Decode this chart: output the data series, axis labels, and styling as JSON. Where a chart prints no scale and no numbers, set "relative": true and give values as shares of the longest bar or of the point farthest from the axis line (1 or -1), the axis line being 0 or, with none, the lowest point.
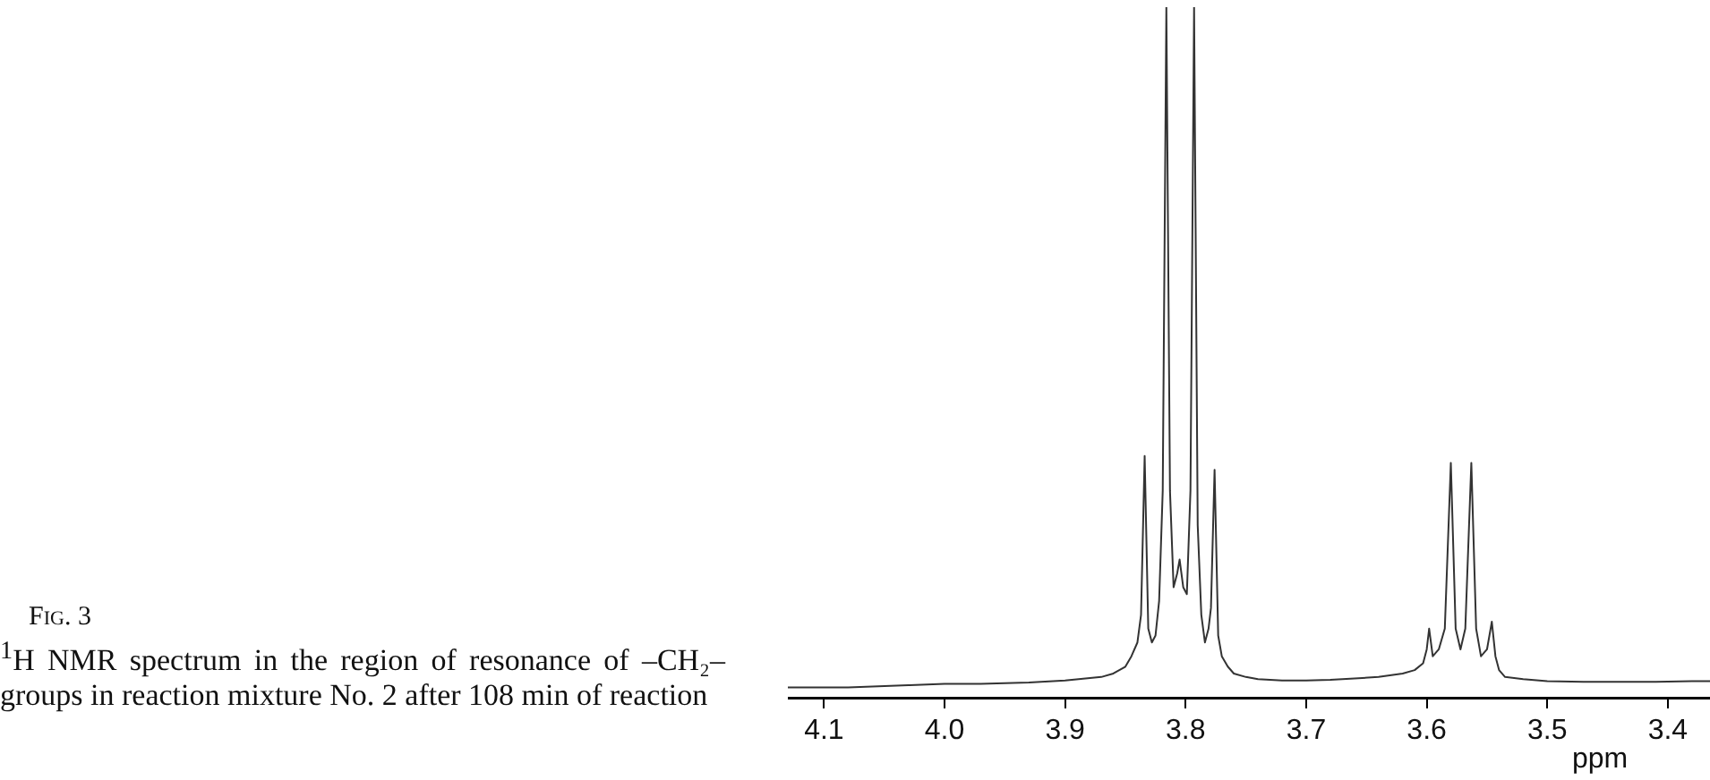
{
  "chart_data": {
    "type": "line",
    "title": "Fig. 3",
    "subtitle": "$^{1}$H NMR spectrum in the region of resonance of –CH₂– groups in reaction mixture No. 2 after 108 min of reaction",
    "xlabel": "ppm",
    "relative": true,
    "grid": false,
    "color": "#333333",
    "x": [
      4.13,
      4.08,
      4.03,
      4.0,
      3.97,
      3.93,
      3.9,
      3.87,
      3.86,
      3.85,
      3.845,
      3.84,
      3.837,
      3.834,
      3.831,
      3.828,
      3.825,
      3.822,
      3.819,
      3.816,
      3.813,
      3.81,
      3.807,
      3.805,
      3.802,
      3.799,
      3.796,
      3.793,
      3.79,
      3.787,
      3.784,
      3.781,
      3.779,
      3.776,
      3.773,
      3.77,
      3.765,
      3.76,
      3.75,
      3.74,
      3.72,
      3.7,
      3.68,
      3.66,
      3.64,
      3.62,
      3.61,
      3.603,
      3.6,
      3.598,
      3.595,
      3.59,
      3.585,
      3.58,
      3.576,
      3.572,
      3.568,
      3.563,
      3.559,
      3.555,
      3.55,
      3.546,
      3.543,
      3.54,
      3.535,
      3.52,
      3.5,
      3.47,
      3.44,
      3.41,
      3.38,
      3.365
    ],
    "values": [
      0.015,
      0.015,
      0.018,
      0.02,
      0.02,
      0.022,
      0.025,
      0.03,
      0.035,
      0.045,
      0.06,
      0.08,
      0.12,
      0.35,
      0.1,
      0.08,
      0.09,
      0.14,
      0.3,
      1,
      0.3,
      0.16,
      0.18,
      0.2,
      0.16,
      0.15,
      0.3,
      1,
      0.25,
      0.12,
      0.08,
      0.1,
      0.13,
      0.33,
      0.09,
      0.06,
      0.045,
      0.035,
      0.03,
      0.027,
      0.025,
      0.025,
      0.026,
      0.028,
      0.03,
      0.035,
      0.04,
      0.05,
      0.07,
      0.1,
      0.06,
      0.07,
      0.1,
      0.34,
      0.1,
      0.07,
      0.1,
      0.34,
      0.1,
      0.06,
      0.07,
      0.11,
      0.06,
      0.04,
      0.03,
      0.027,
      0.024,
      0.023,
      0.023,
      0.023,
      0.024,
      0.024
    ],
    "xlim": [
      4.13,
      3.365
    ],
    "xticks": [
      4.1,
      {
        "value": 4,
        "label": "4.0"
      },
      3.9,
      3.8,
      3.7,
      3.6,
      3.5,
      3.4
    ]
  }
}
